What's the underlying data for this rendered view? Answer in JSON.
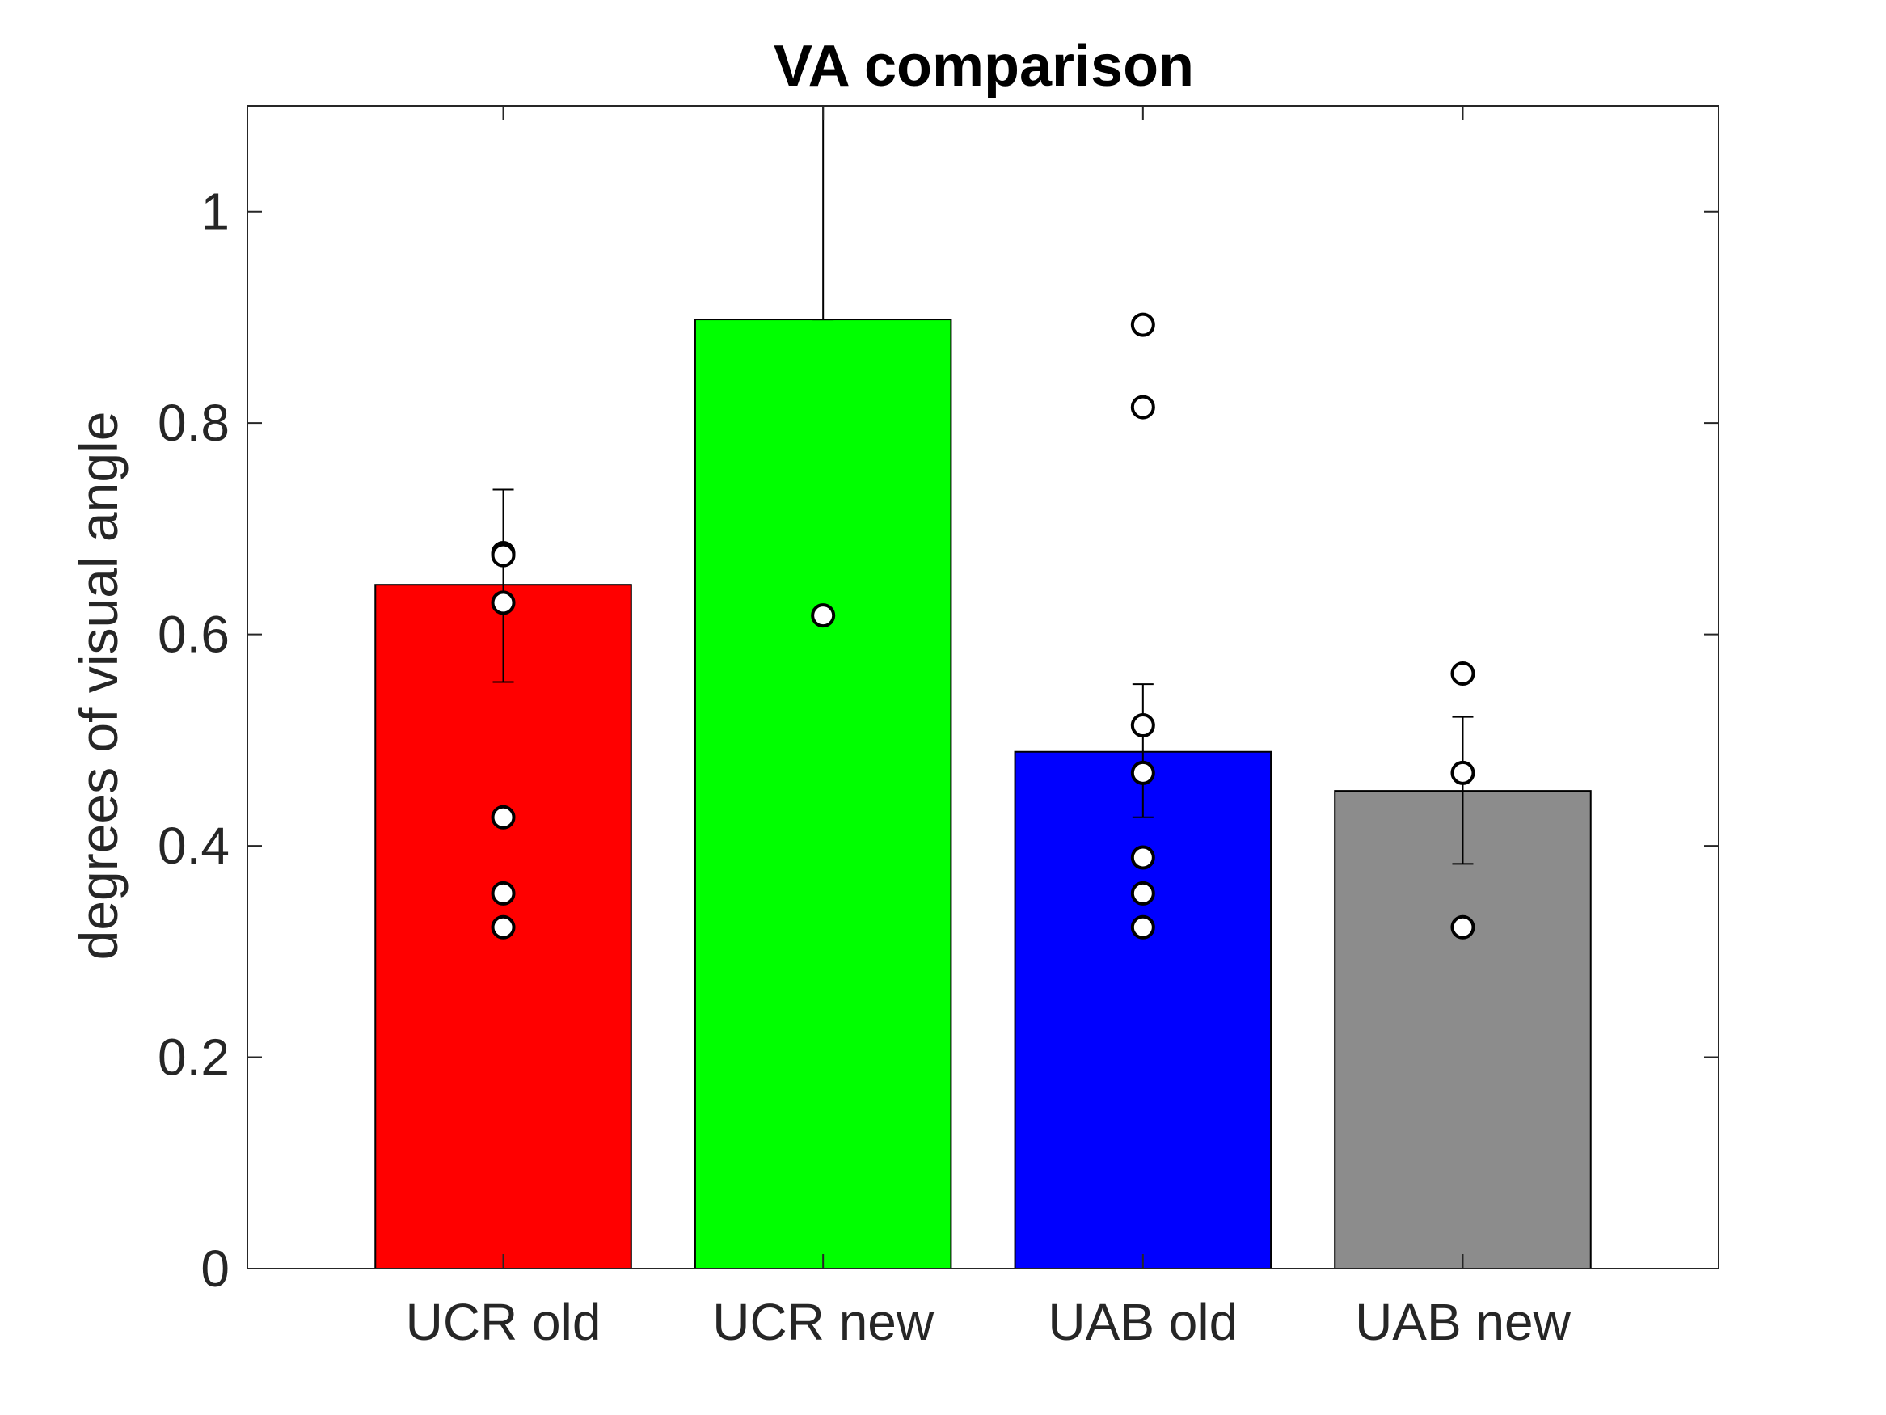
{
  "chart_data": {
    "type": "bar",
    "title": "VA comparison",
    "xlabel": "",
    "ylabel": "degrees of visual angle",
    "categories": [
      "UCR old",
      "UCR new",
      "UAB old",
      "UAB new"
    ],
    "values": [
      0.647,
      0.898,
      0.489,
      0.452
    ],
    "error_bars": [
      {
        "lower": 0.555,
        "upper": 0.737
      },
      {
        "lower": 0.898,
        "upper": 1.1
      },
      {
        "lower": 0.427,
        "upper": 0.553
      },
      {
        "lower": 0.383,
        "upper": 0.522
      }
    ],
    "individual_points": [
      [
        0.677,
        0.675,
        0.63,
        0.427,
        0.355,
        0.323
      ],
      [
        0.618
      ],
      [
        0.893,
        0.815,
        0.514,
        0.469,
        0.389,
        0.355,
        0.323
      ],
      [
        0.563,
        0.469,
        0.323
      ]
    ],
    "bar_colors": [
      "#ff0000",
      "#00ff00",
      "#0000ff",
      "#8c8c8c"
    ],
    "ylim": [
      0,
      1.1
    ],
    "xlim": [
      0.2,
      4.8
    ],
    "yticks": [
      0,
      0.2,
      0.4,
      0.6,
      0.8,
      1
    ],
    "ytick_labels": [
      "0",
      "0.2",
      "0.4",
      "0.6",
      "0.8",
      "1"
    ],
    "grid": false,
    "legend": "none"
  }
}
